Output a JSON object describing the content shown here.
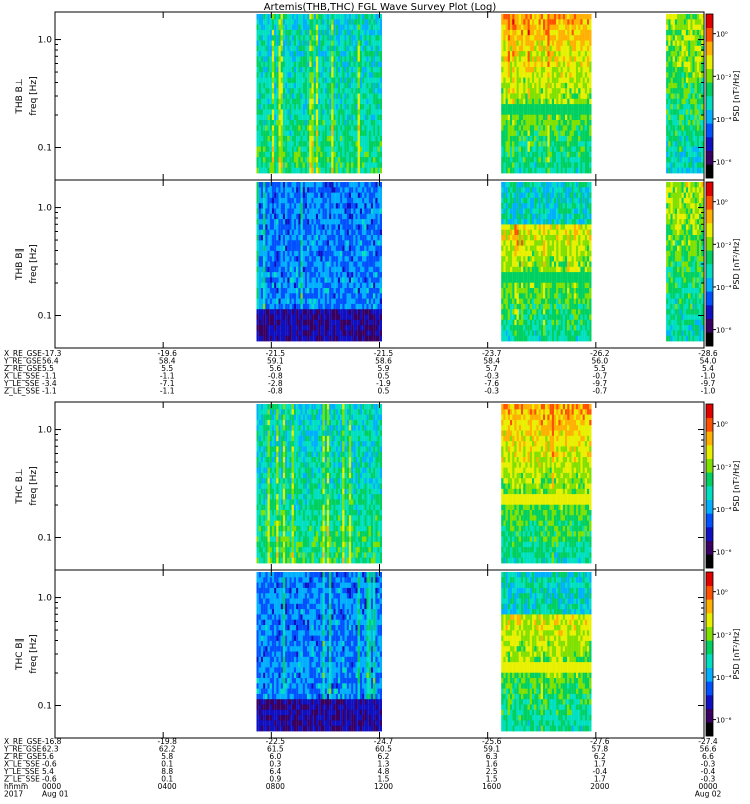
{
  "title": "Artemis(THB,THC) FGL Wave Survey Plot (Log)",
  "panels": [
    {
      "probe": "THB",
      "comp": "B⊥",
      "ylabel": "freq [Hz]"
    },
    {
      "probe": "THB",
      "comp": "B∥",
      "ylabel": "freq [Hz]"
    },
    {
      "probe": "THC",
      "comp": "B⊥",
      "ylabel": "freq [Hz]"
    },
    {
      "probe": "THC",
      "comp": "B∥",
      "ylabel": "freq [Hz]"
    }
  ],
  "freq_ticks": [
    "1.0",
    "0.1"
  ],
  "colorbar": {
    "label": "PSD [nT²/Hz]",
    "ticks": [
      "10⁰",
      "10⁻²",
      "10⁻⁴",
      "10⁻⁶"
    ]
  },
  "ephem_thb": {
    "labels": [
      "X_RE_GSE",
      "Y_RE_GSE",
      "Z_RE_GSE",
      "X_LE_SSE",
      "Y_LE_SSE",
      "Z_LE_SSE"
    ],
    "columns": [
      [
        "-17.3",
        "56.4",
        "5.5",
        "-1.1",
        "-3.4",
        "-1.1"
      ],
      [
        "-19.6",
        "58.4",
        "5.5",
        "-1.1",
        "-7.1",
        "-1.1"
      ],
      [
        "-21.5",
        "59.1",
        "5.6",
        "-0.8",
        "-2.8",
        "-0.8"
      ],
      [
        "-21.5",
        "58.6",
        "5.9",
        "0.5",
        "-1.9",
        "0.5"
      ],
      [
        "-23.7",
        "58.4",
        "5.7",
        "-0.3",
        "-7.6",
        "-0.3"
      ],
      [
        "-26.2",
        "56.0",
        "5.5",
        "-0.7",
        "-9.7",
        "-0.7"
      ],
      [
        "-28.6",
        "54.0",
        "5.4",
        "-1.0",
        "-9.7",
        "-1.0"
      ]
    ]
  },
  "ephem_thc": {
    "labels": [
      "X_RE_GSE",
      "Y_RE_GSE",
      "Z_RE_GSE",
      "X_LE_SSE",
      "Y_LE_SSE",
      "Z_LE_SSE",
      "hhmm",
      "2017"
    ],
    "columns": [
      [
        "-16.8",
        "62.3",
        "5.6",
        "-0.6",
        "5.4",
        "-0.6",
        "0000",
        "Aug 01"
      ],
      [
        "-19.8",
        "62.2",
        "5.8",
        "0.1",
        "8.8",
        "0.1",
        "0400",
        ""
      ],
      [
        "-22.5",
        "61.5",
        "6.0",
        "0.3",
        "6.4",
        "0.9",
        "0800",
        ""
      ],
      [
        "-24.7",
        "60.5",
        "6.2",
        "1.3",
        "4.8",
        "1.5",
        "1200",
        ""
      ],
      [
        "-25.6",
        "59.1",
        "6.3",
        "1.6",
        "2.5",
        "1.5",
        "1600",
        ""
      ],
      [
        "-27.6",
        "57.8",
        "6.2",
        "1.7",
        "-0.4",
        "1.7",
        "2000",
        ""
      ],
      [
        "-27.4",
        "56.6",
        "6.6",
        "-0.3",
        "-0.4",
        "-0.3",
        "0000",
        "Aug 02"
      ]
    ]
  },
  "chart_data": {
    "type": "heatmap",
    "title": "Artemis(THB,THC) FGL Wave Survey Plot (Log)",
    "x_axis": {
      "start": "2017 Aug 01 0000",
      "end": "2017 Aug 02 0000",
      "ticks": [
        "0000",
        "0400",
        "0800",
        "1200",
        "1600",
        "2000",
        "0000"
      ]
    },
    "y_axis": {
      "label": "freq [Hz]",
      "scale": "log",
      "ticks": [
        1.0,
        0.1
      ],
      "range": [
        0.05,
        1.8
      ]
    },
    "colorbar": {
      "label": "PSD [nT²/Hz]",
      "scale": "log",
      "range": [
        "10^-7",
        "10^1"
      ]
    },
    "colormap": [
      "#000000",
      "#3a0060",
      "#1010c0",
      "#0050ff",
      "#00b0ff",
      "#00e0c0",
      "#00d060",
      "#80e000",
      "#e8f000",
      "#ffb000",
      "#ff5000",
      "#e00000"
    ],
    "series": [
      {
        "name": "THB B⊥",
        "data_intervals_hours": [
          [
            7.45,
            12.1
          ],
          [
            16.5,
            19.85
          ],
          [
            22.6,
            24.0
          ]
        ]
      },
      {
        "name": "THB B∥",
        "data_intervals_hours": [
          [
            7.45,
            12.1
          ],
          [
            16.5,
            19.85
          ],
          [
            22.6,
            24.0
          ]
        ]
      },
      {
        "name": "THC B⊥",
        "data_intervals_hours": [
          [
            7.45,
            12.1
          ],
          [
            16.5,
            19.85
          ]
        ]
      },
      {
        "name": "THC B∥",
        "data_intervals_hours": [
          [
            7.45,
            12.1
          ],
          [
            16.5,
            19.85
          ]
        ]
      }
    ]
  }
}
